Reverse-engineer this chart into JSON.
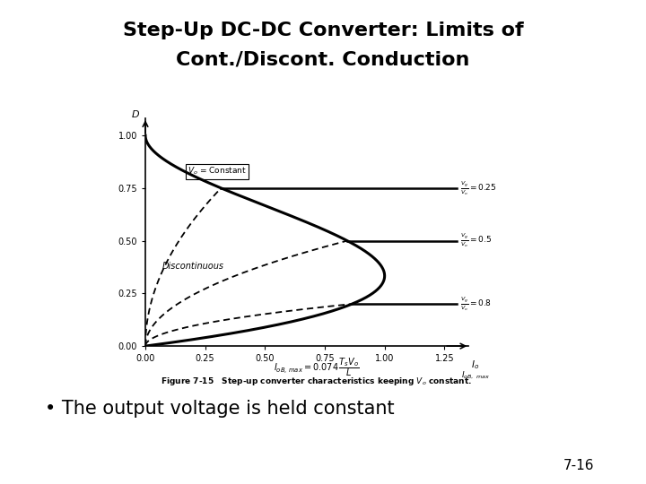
{
  "title_line1": "Step-Up DC-DC Converter: Limits of",
  "title_line2": "Cont./Discont. Conduction",
  "title_fontsize": 16,
  "bullet_text": "• The output voltage is held constant",
  "bullet_fontsize": 15,
  "page_number": "7-16",
  "xlim": [
    0,
    1.35
  ],
  "ylim": [
    0,
    1.08
  ],
  "xticks": [
    0,
    0.25,
    0.5,
    0.75,
    1.0,
    1.25
  ],
  "yticks": [
    0,
    0.25,
    0.5,
    0.75,
    1.0
  ],
  "vg_vo_ratios": [
    0.25,
    0.5,
    0.8
  ],
  "box_label": "$V_o$ = Constant",
  "discontinuous_label": "Discontinuous",
  "fig_caption": "Figure 7-15   Step-up converter characteristics keeping $V_o$ constant.",
  "background_color": "#ffffff",
  "curve_color": "#000000"
}
